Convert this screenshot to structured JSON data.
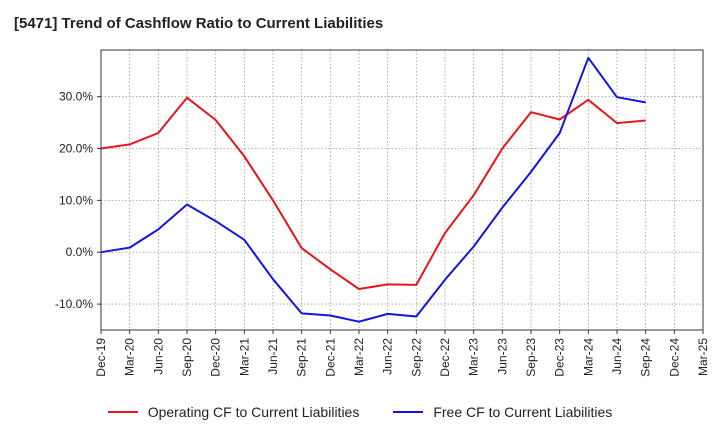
{
  "title": "[5471]  Trend of Cashflow Ratio to Current Liabilities",
  "colors": {
    "operating": "#e8151b",
    "free": "#1515e0"
  },
  "chart_data": {
    "type": "line",
    "title": "[5471]  Trend of Cashflow Ratio to Current Liabilities",
    "x": [
      "Dec-19",
      "Mar-20",
      "Jun-20",
      "Sep-20",
      "Dec-20",
      "Mar-21",
      "Jun-21",
      "Sep-21",
      "Dec-21",
      "Mar-22",
      "Jun-22",
      "Sep-22",
      "Dec-22",
      "Mar-23",
      "Jun-23",
      "Sep-23",
      "Dec-23",
      "Mar-24",
      "Jun-24",
      "Sep-24",
      "Dec-24",
      "Mar-25"
    ],
    "ylim": [
      -15,
      39
    ],
    "yticks": [
      -10,
      0,
      10,
      20,
      30
    ],
    "ytick_labels": [
      "-10.0%",
      "0.0%",
      "10.0%",
      "20.0%",
      "30.0%"
    ],
    "grid": true,
    "legend_position": "bottom",
    "series": [
      {
        "name": "Operating CF to Current Liabilities",
        "color": "#e8151b",
        "values": [
          20.0,
          20.8,
          23.0,
          29.8,
          25.5,
          18.5,
          10.0,
          0.8,
          -3.3,
          -7.1,
          -6.2,
          -6.3,
          3.7,
          11.0,
          20.0,
          27.0,
          25.6,
          29.4,
          24.9,
          25.4,
          null,
          null
        ]
      },
      {
        "name": "Free CF to Current Liabilities",
        "color": "#1515e0",
        "values": [
          0.0,
          0.9,
          4.4,
          9.2,
          6.0,
          2.4,
          -5.2,
          -11.8,
          -12.2,
          -13.4,
          -11.9,
          -12.4,
          -5.3,
          1.1,
          8.6,
          15.5,
          23.0,
          37.5,
          29.9,
          28.9,
          null,
          null
        ]
      }
    ]
  }
}
